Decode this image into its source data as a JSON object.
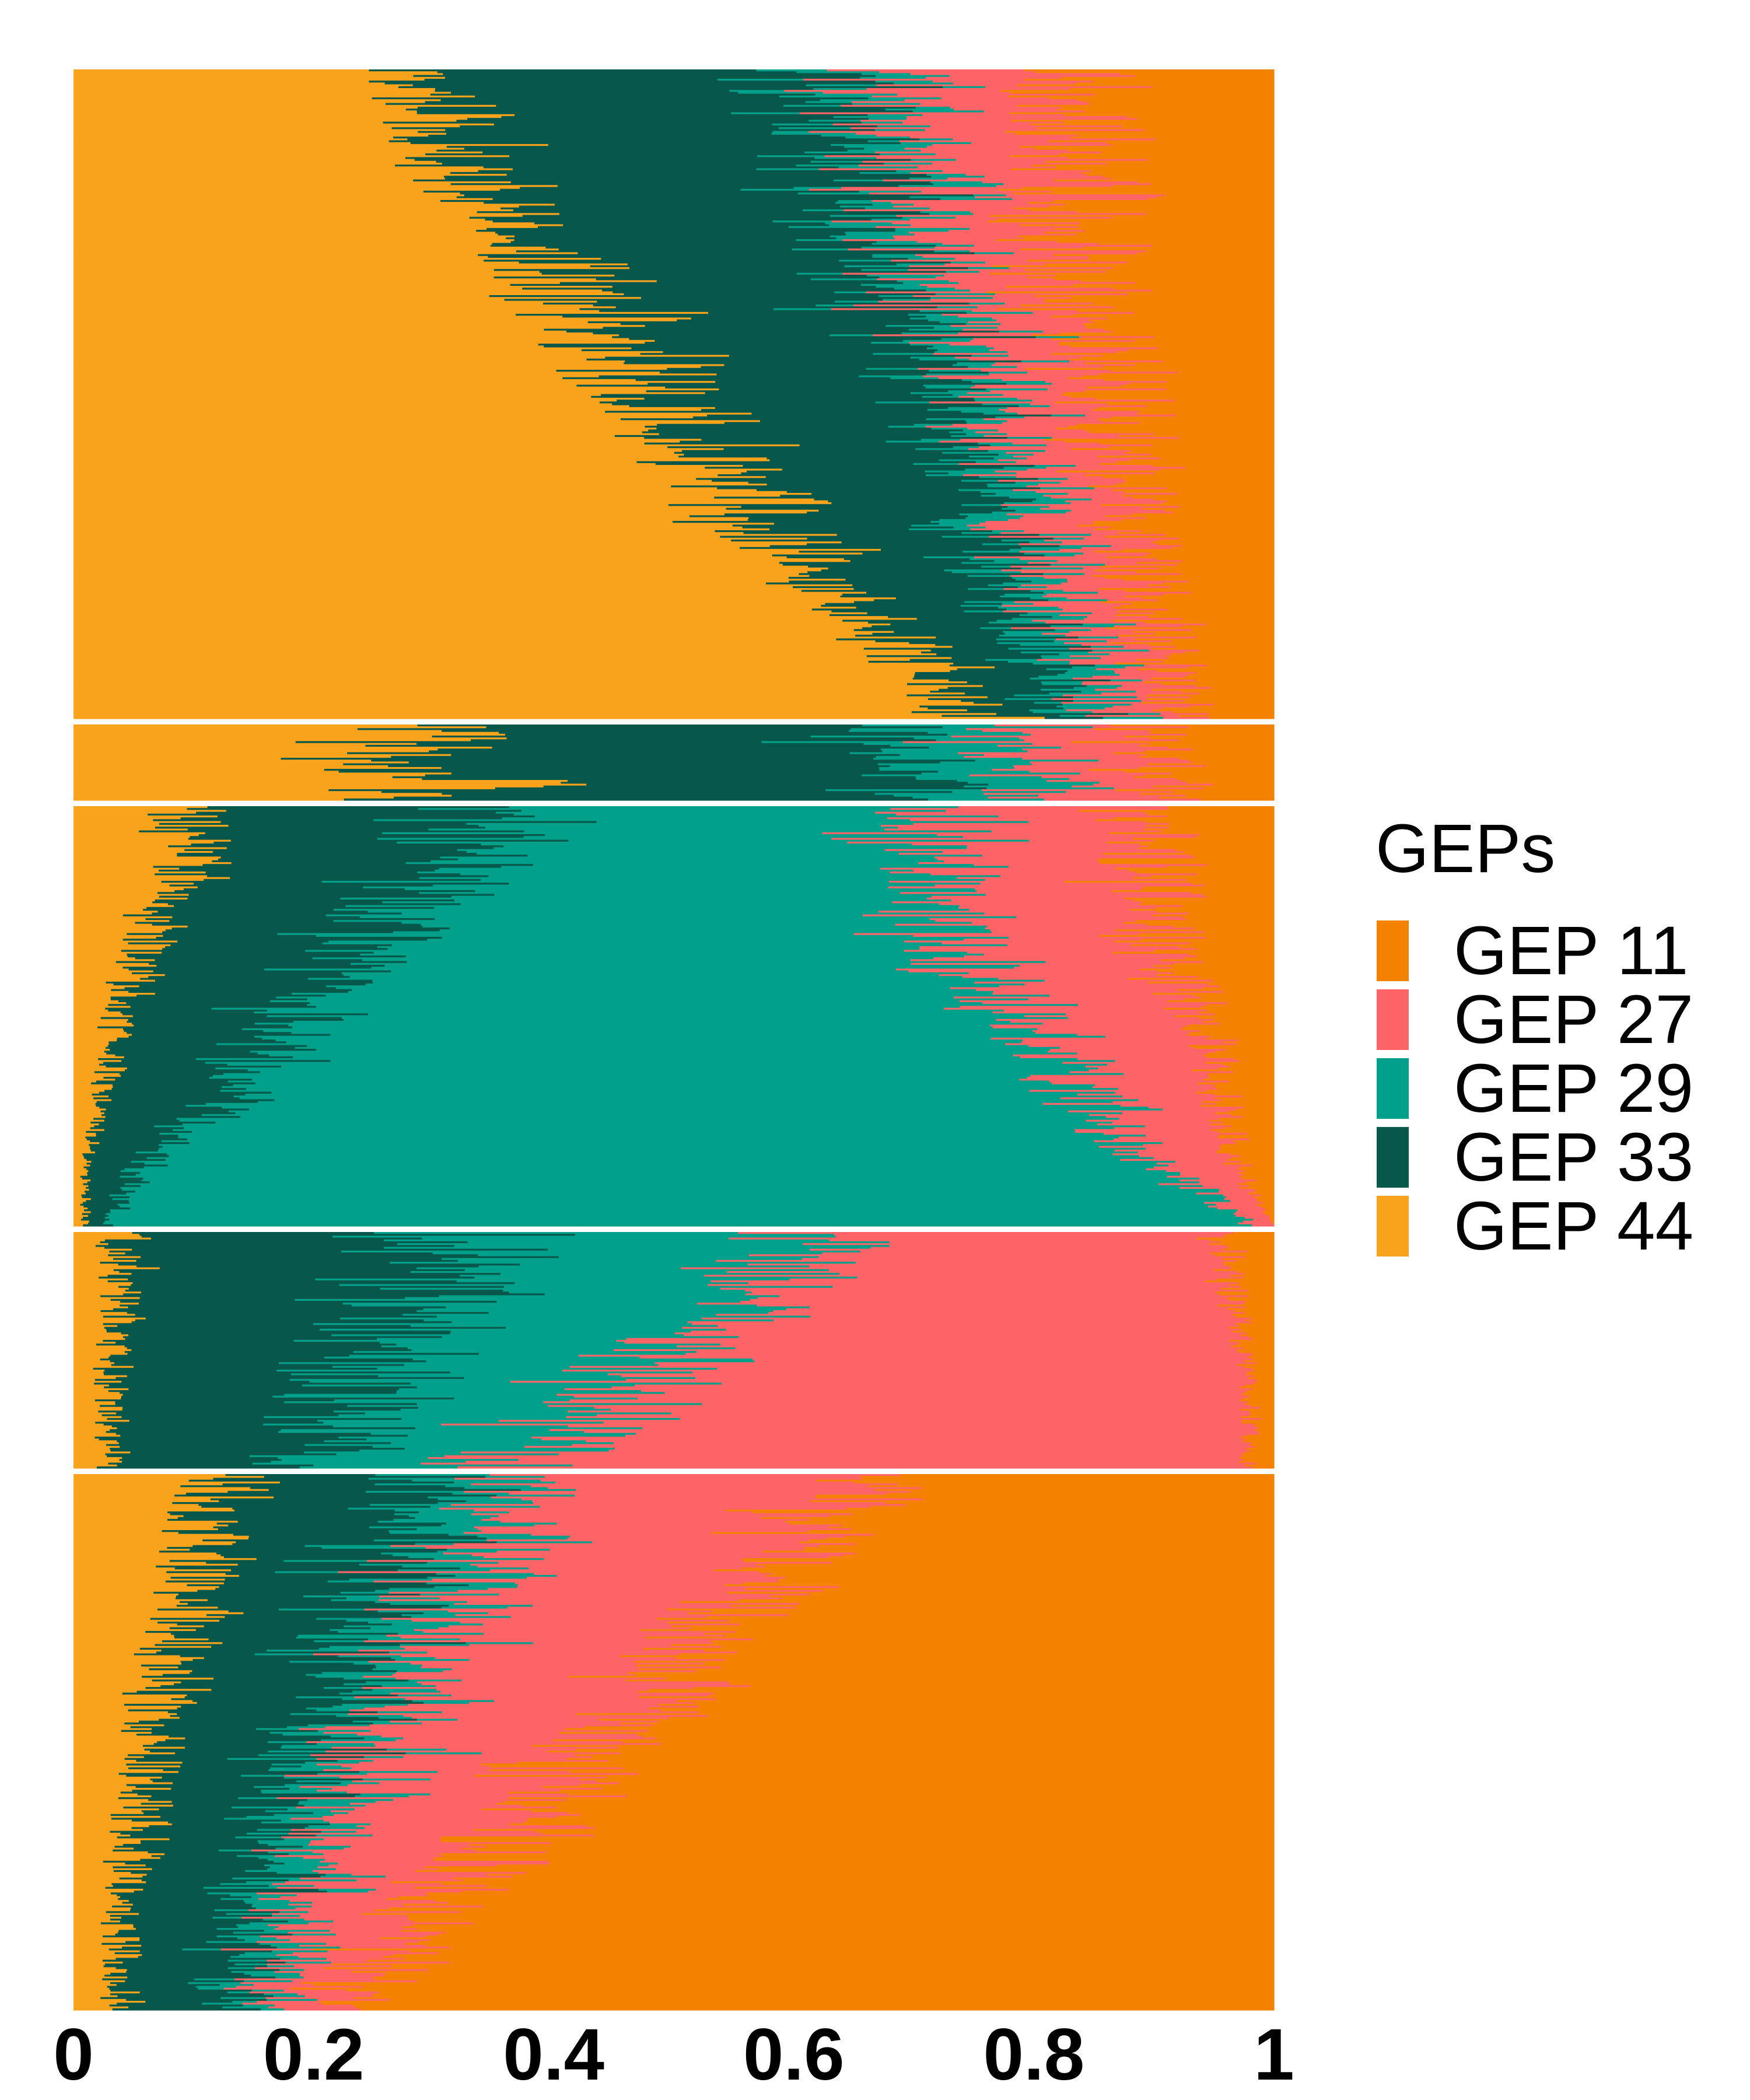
{
  "chart_data": {
    "type": "bar",
    "orientation": "horizontal",
    "stacked": true,
    "normalized": true,
    "xlim": [
      0,
      1
    ],
    "x_ticks": [
      {
        "value": 0,
        "label": "0"
      },
      {
        "value": 0.2,
        "label": "0.2"
      },
      {
        "value": 0.4,
        "label": "0.4"
      },
      {
        "value": 0.6,
        "label": "0.6"
      },
      {
        "value": 0.8,
        "label": "0.8"
      },
      {
        "value": 1,
        "label": "1"
      }
    ],
    "grid": false,
    "legend_placement": "right",
    "legend": {
      "title": "GEPs",
      "entries": [
        {
          "name": "GEP 11",
          "color": "#F58100"
        },
        {
          "name": "GEP 27",
          "color": "#FD6467"
        },
        {
          "name": "GEP 29",
          "color": "#00A08A"
        },
        {
          "name": "GEP 33",
          "color": "#07574B"
        },
        {
          "name": "GEP 44",
          "color": "#F9A21B"
        }
      ]
    },
    "stack_order": [
      "GEP 44",
      "GEP 33",
      "GEP 29",
      "GEP 27",
      "GEP 11"
    ],
    "panels": [
      {
        "dominant": "GEP 44",
        "approx_cells": 520,
        "series": [
          {
            "name": "GEP 44",
            "values": [
              0.28,
              0.3,
              0.33,
              0.36,
              0.4,
              0.43,
              0.46,
              0.5,
              0.53,
              0.57,
              0.61,
              0.66,
              0.71,
              0.75
            ]
          },
          {
            "name": "GEP 33",
            "values": [
              0.36,
              0.34,
              0.32,
              0.3,
              0.28,
              0.27,
              0.26,
              0.23,
              0.22,
              0.19,
              0.16,
              0.13,
              0.1,
              0.08
            ]
          },
          {
            "name": "GEP 29",
            "values": [
              0.05,
              0.05,
              0.05,
              0.05,
              0.04,
              0.04,
              0.04,
              0.04,
              0.04,
              0.04,
              0.04,
              0.04,
              0.04,
              0.04
            ]
          },
          {
            "name": "GEP 27",
            "values": [
              0.14,
              0.14,
              0.13,
              0.12,
              0.11,
              0.1,
              0.1,
              0.09,
              0.09,
              0.08,
              0.08,
              0.07,
              0.06,
              0.06
            ]
          },
          {
            "name": "GEP 11",
            "values": [
              0.17,
              0.17,
              0.17,
              0.17,
              0.17,
              0.16,
              0.14,
              0.14,
              0.12,
              0.12,
              0.11,
              0.1,
              0.09,
              0.07
            ]
          }
        ]
      },
      {
        "dominant": "GEP 33",
        "approx_cells": 60,
        "series": [
          {
            "name": "GEP 44",
            "values": [
              0.25,
              0.3,
              0.22,
              0.35,
              0.28
            ]
          },
          {
            "name": "GEP 33",
            "values": [
              0.4,
              0.37,
              0.45,
              0.36,
              0.42
            ]
          },
          {
            "name": "GEP 29",
            "values": [
              0.1,
              0.1,
              0.1,
              0.09,
              0.1
            ]
          },
          {
            "name": "GEP 27",
            "values": [
              0.13,
              0.12,
              0.12,
              0.11,
              0.11
            ]
          },
          {
            "name": "GEP 11",
            "values": [
              0.12,
              0.11,
              0.11,
              0.09,
              0.09
            ]
          }
        ]
      },
      {
        "dominant": "GEP 29",
        "approx_cells": 320,
        "series": [
          {
            "name": "GEP 44",
            "values": [
              0.1,
              0.09,
              0.07,
              0.06,
              0.04,
              0.03,
              0.02,
              0.01,
              0.01
            ]
          },
          {
            "name": "GEP 33",
            "values": [
              0.25,
              0.22,
              0.2,
              0.18,
              0.15,
              0.12,
              0.08,
              0.04,
              0.02
            ]
          },
          {
            "name": "GEP 29",
            "values": [
              0.35,
              0.4,
              0.45,
              0.5,
              0.6,
              0.68,
              0.76,
              0.86,
              0.95
            ]
          },
          {
            "name": "GEP 27",
            "values": [
              0.18,
              0.18,
              0.18,
              0.17,
              0.15,
              0.12,
              0.1,
              0.06,
              0.02
            ]
          },
          {
            "name": "GEP 11",
            "values": [
              0.12,
              0.11,
              0.1,
              0.09,
              0.06,
              0.05,
              0.04,
              0.03,
              0.0
            ]
          }
        ]
      },
      {
        "dominant": "GEP 27",
        "approx_cells": 180,
        "series": [
          {
            "name": "GEP 44",
            "values": [
              0.04,
              0.04,
              0.04,
              0.03,
              0.03,
              0.03
            ]
          },
          {
            "name": "GEP 33",
            "values": [
              0.28,
              0.25,
              0.23,
              0.22,
              0.2,
              0.18
            ]
          },
          {
            "name": "GEP 29",
            "values": [
              0.32,
              0.3,
              0.25,
              0.23,
              0.2,
              0.17
            ]
          },
          {
            "name": "GEP 27",
            "values": [
              0.32,
              0.37,
              0.45,
              0.5,
              0.55,
              0.6
            ]
          },
          {
            "name": "GEP 11",
            "values": [
              0.04,
              0.04,
              0.03,
              0.02,
              0.02,
              0.02
            ]
          }
        ]
      },
      {
        "dominant": "GEP 11",
        "approx_cells": 400,
        "series": [
          {
            "name": "GEP 44",
            "values": [
              0.12,
              0.11,
              0.1,
              0.09,
              0.08,
              0.07,
              0.06,
              0.05,
              0.04,
              0.04,
              0.04
            ]
          },
          {
            "name": "GEP 33",
            "values": [
              0.17,
              0.16,
              0.16,
              0.15,
              0.15,
              0.14,
              0.13,
              0.12,
              0.11,
              0.1,
              0.09
            ]
          },
          {
            "name": "GEP 29",
            "values": [
              0.07,
              0.07,
              0.06,
              0.06,
              0.05,
              0.05,
              0.05,
              0.04,
              0.04,
              0.04,
              0.03
            ]
          },
          {
            "name": "GEP 27",
            "values": [
              0.32,
              0.28,
              0.26,
              0.24,
              0.21,
              0.19,
              0.17,
              0.15,
              0.12,
              0.09,
              0.07
            ]
          },
          {
            "name": "GEP 11",
            "values": [
              0.32,
              0.38,
              0.42,
              0.46,
              0.51,
              0.55,
              0.59,
              0.64,
              0.69,
              0.73,
              0.77
            ]
          }
        ]
      }
    ]
  }
}
